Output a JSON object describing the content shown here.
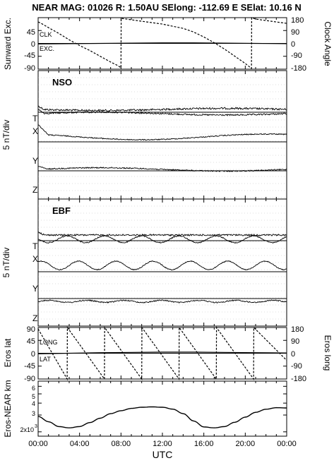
{
  "header": {
    "title": "NEAR MAG: 01026  R: 1.50AU  SElong: -112.69 E  SElat:   10.16 N"
  },
  "chart_data": [
    {
      "type": "line",
      "panel": "sunward-clock",
      "ylabel": "Sunward Exc.",
      "y2label": "Clock Angle",
      "ylim": [
        -90,
        90
      ],
      "y2lim": [
        -180,
        180
      ],
      "yticks": [
        "45",
        "0",
        "-45",
        "-90"
      ],
      "y2ticks": [
        "180",
        "90",
        "0",
        "-90",
        "-180"
      ],
      "annotations": [
        "CLK",
        "EXC."
      ],
      "series": [
        {
          "name": "CLK",
          "axis": "right",
          "style": "dashed",
          "x": [
            0.0,
            0.3,
            1.0,
            2.0,
            3.0,
            4.0,
            5.0,
            6.0,
            7.0,
            7.7,
            8.0,
            8.02,
            9.0,
            10.0,
            11.0,
            12.0,
            13.0,
            14.0,
            15.0,
            16.0,
            17.0,
            18.0,
            19.0,
            20.0,
            20.6,
            20.62,
            21.0,
            22.0,
            23.0,
            24.0
          ],
          "y": [
            150,
            140,
            110,
            70,
            25,
            -15,
            -50,
            -90,
            -130,
            -155,
            -170,
            175,
            165,
            155,
            145,
            135,
            120,
            105,
            80,
            45,
            5,
            -40,
            -90,
            -140,
            -175,
            180,
            170,
            160,
            150,
            140
          ]
        },
        {
          "name": "EXC.",
          "axis": "left",
          "style": "solid",
          "x": [
            0,
            3,
            6,
            9,
            12,
            15,
            18,
            21,
            24
          ],
          "y": [
            -2,
            -1,
            0,
            1,
            2,
            2,
            1,
            0,
            -1
          ]
        }
      ]
    },
    {
      "type": "line",
      "panel": "NSO",
      "label": "NSO",
      "ylabel": "5 nT/div",
      "components": [
        "T",
        "X",
        "Y",
        "Z"
      ]
    },
    {
      "type": "line",
      "panel": "EBF",
      "label": "EBF",
      "ylabel": "5 nT/div",
      "components": [
        "T",
        "X",
        "Y",
        "Z"
      ]
    },
    {
      "type": "line",
      "panel": "eros-lat-long",
      "ylabel": "Eros lat",
      "y2label": "Eros long",
      "ylim": [
        -90,
        90
      ],
      "y2lim": [
        -180,
        180
      ],
      "yticks": [
        "90",
        "45",
        "0",
        "-45",
        "-90"
      ],
      "y2ticks": [
        "180",
        "90",
        "0",
        "-90",
        "-180"
      ],
      "annotations": [
        "LONG",
        "LAT"
      ],
      "series": [
        {
          "name": "LONG",
          "axis": "right",
          "style": "dashed",
          "x": [
            0.0,
            2.8,
            2.82,
            6.4,
            6.42,
            10.0,
            10.02,
            13.6,
            13.62,
            17.2,
            17.22,
            20.8,
            20.82,
            24.0
          ],
          "y": [
            170,
            -180,
            180,
            -180,
            180,
            -180,
            180,
            -180,
            180,
            -180,
            180,
            -180,
            180,
            -50
          ]
        },
        {
          "name": "LAT",
          "axis": "left",
          "style": "solid",
          "x": [
            0,
            3,
            6,
            9,
            12,
            15,
            18,
            21,
            24
          ],
          "y": [
            -2,
            0,
            2,
            3,
            4,
            4,
            3,
            2,
            1
          ]
        }
      ]
    },
    {
      "type": "line",
      "panel": "eros-near-km",
      "ylabel": "Eros-NEAR km",
      "yscale": "log",
      "yticks": [
        "6",
        "5",
        "4",
        "3",
        "2x10"
      ],
      "ytick_exponent": "3",
      "series": [
        {
          "name": "",
          "style": "solid",
          "x": [
            0,
            1,
            2,
            3,
            4,
            5,
            6,
            7,
            8,
            9,
            10,
            11,
            12,
            13,
            14,
            15,
            16,
            17,
            18,
            19,
            20,
            21,
            22,
            23,
            24
          ],
          "y": [
            2900,
            2550,
            2270,
            2200,
            2270,
            2500,
            2780,
            3100,
            3330,
            3520,
            3620,
            3650,
            3620,
            3460,
            3100,
            2600,
            2250,
            2200,
            2270,
            2520,
            2850,
            3200,
            3450,
            3580,
            3560
          ]
        }
      ]
    }
  ],
  "xaxis": {
    "label": "UTC",
    "ticks": [
      "00:00",
      "04:00",
      "08:00",
      "12:00",
      "16:00",
      "20:00",
      "00:00"
    ]
  }
}
